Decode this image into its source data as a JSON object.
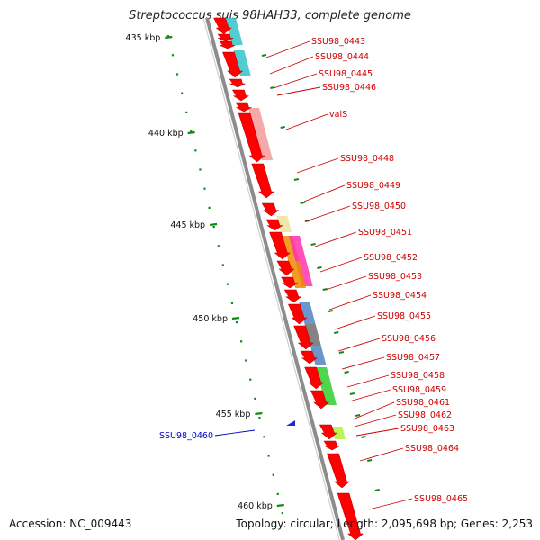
{
  "title": "Streptococcus suis 98HAH33, complete genome",
  "footer": {
    "accession": "Accession: NC_009443",
    "topology": "Topology: circular; Length: 2,095,698 bp; Genes: 2,253"
  },
  "colors": {
    "axis": "#8c8c8c",
    "gene_arrow": "#ff0000",
    "tick": "#128a12",
    "label_fwd": "#cc0000",
    "label_rev": "#0000cc"
  },
  "scale_labels": [
    {
      "kbp": 435,
      "text": "435 kbp"
    },
    {
      "kbp": 440,
      "text": "440 kbp"
    },
    {
      "kbp": 445,
      "text": "445 kbp"
    },
    {
      "kbp": 450,
      "text": "450 kbp"
    },
    {
      "kbp": 455,
      "text": "455 kbp"
    },
    {
      "kbp": 460,
      "text": "460 kbp"
    }
  ],
  "gene_labels": [
    {
      "text": "SSU98_0443",
      "strand": "+"
    },
    {
      "text": "SSU98_0444",
      "strand": "+"
    },
    {
      "text": "SSU98_0445",
      "strand": "+"
    },
    {
      "text": "SSU98_0446",
      "strand": "+"
    },
    {
      "text": "valS",
      "strand": "+"
    },
    {
      "text": "SSU98_0448",
      "strand": "+"
    },
    {
      "text": "SSU98_0449",
      "strand": "+"
    },
    {
      "text": "SSU98_0450",
      "strand": "+"
    },
    {
      "text": "SSU98_0451",
      "strand": "+"
    },
    {
      "text": "SSU98_0452",
      "strand": "+"
    },
    {
      "text": "SSU98_0453",
      "strand": "+"
    },
    {
      "text": "SSU98_0454",
      "strand": "+"
    },
    {
      "text": "SSU98_0455",
      "strand": "+"
    },
    {
      "text": "SSU98_0456",
      "strand": "+"
    },
    {
      "text": "SSU98_0457",
      "strand": "+"
    },
    {
      "text": "SSU98_0458",
      "strand": "+"
    },
    {
      "text": "SSU98_0459",
      "strand": "+"
    },
    {
      "text": "SSU98_0461",
      "strand": "+"
    },
    {
      "text": "SSU98_0462",
      "strand": "+"
    },
    {
      "text": "SSU98_0463",
      "strand": "+"
    },
    {
      "text": "SSU98_0464",
      "strand": "+"
    },
    {
      "text": "SSU98_0460",
      "strand": "-"
    },
    {
      "text": "SSU98_0465",
      "strand": "+"
    }
  ]
}
